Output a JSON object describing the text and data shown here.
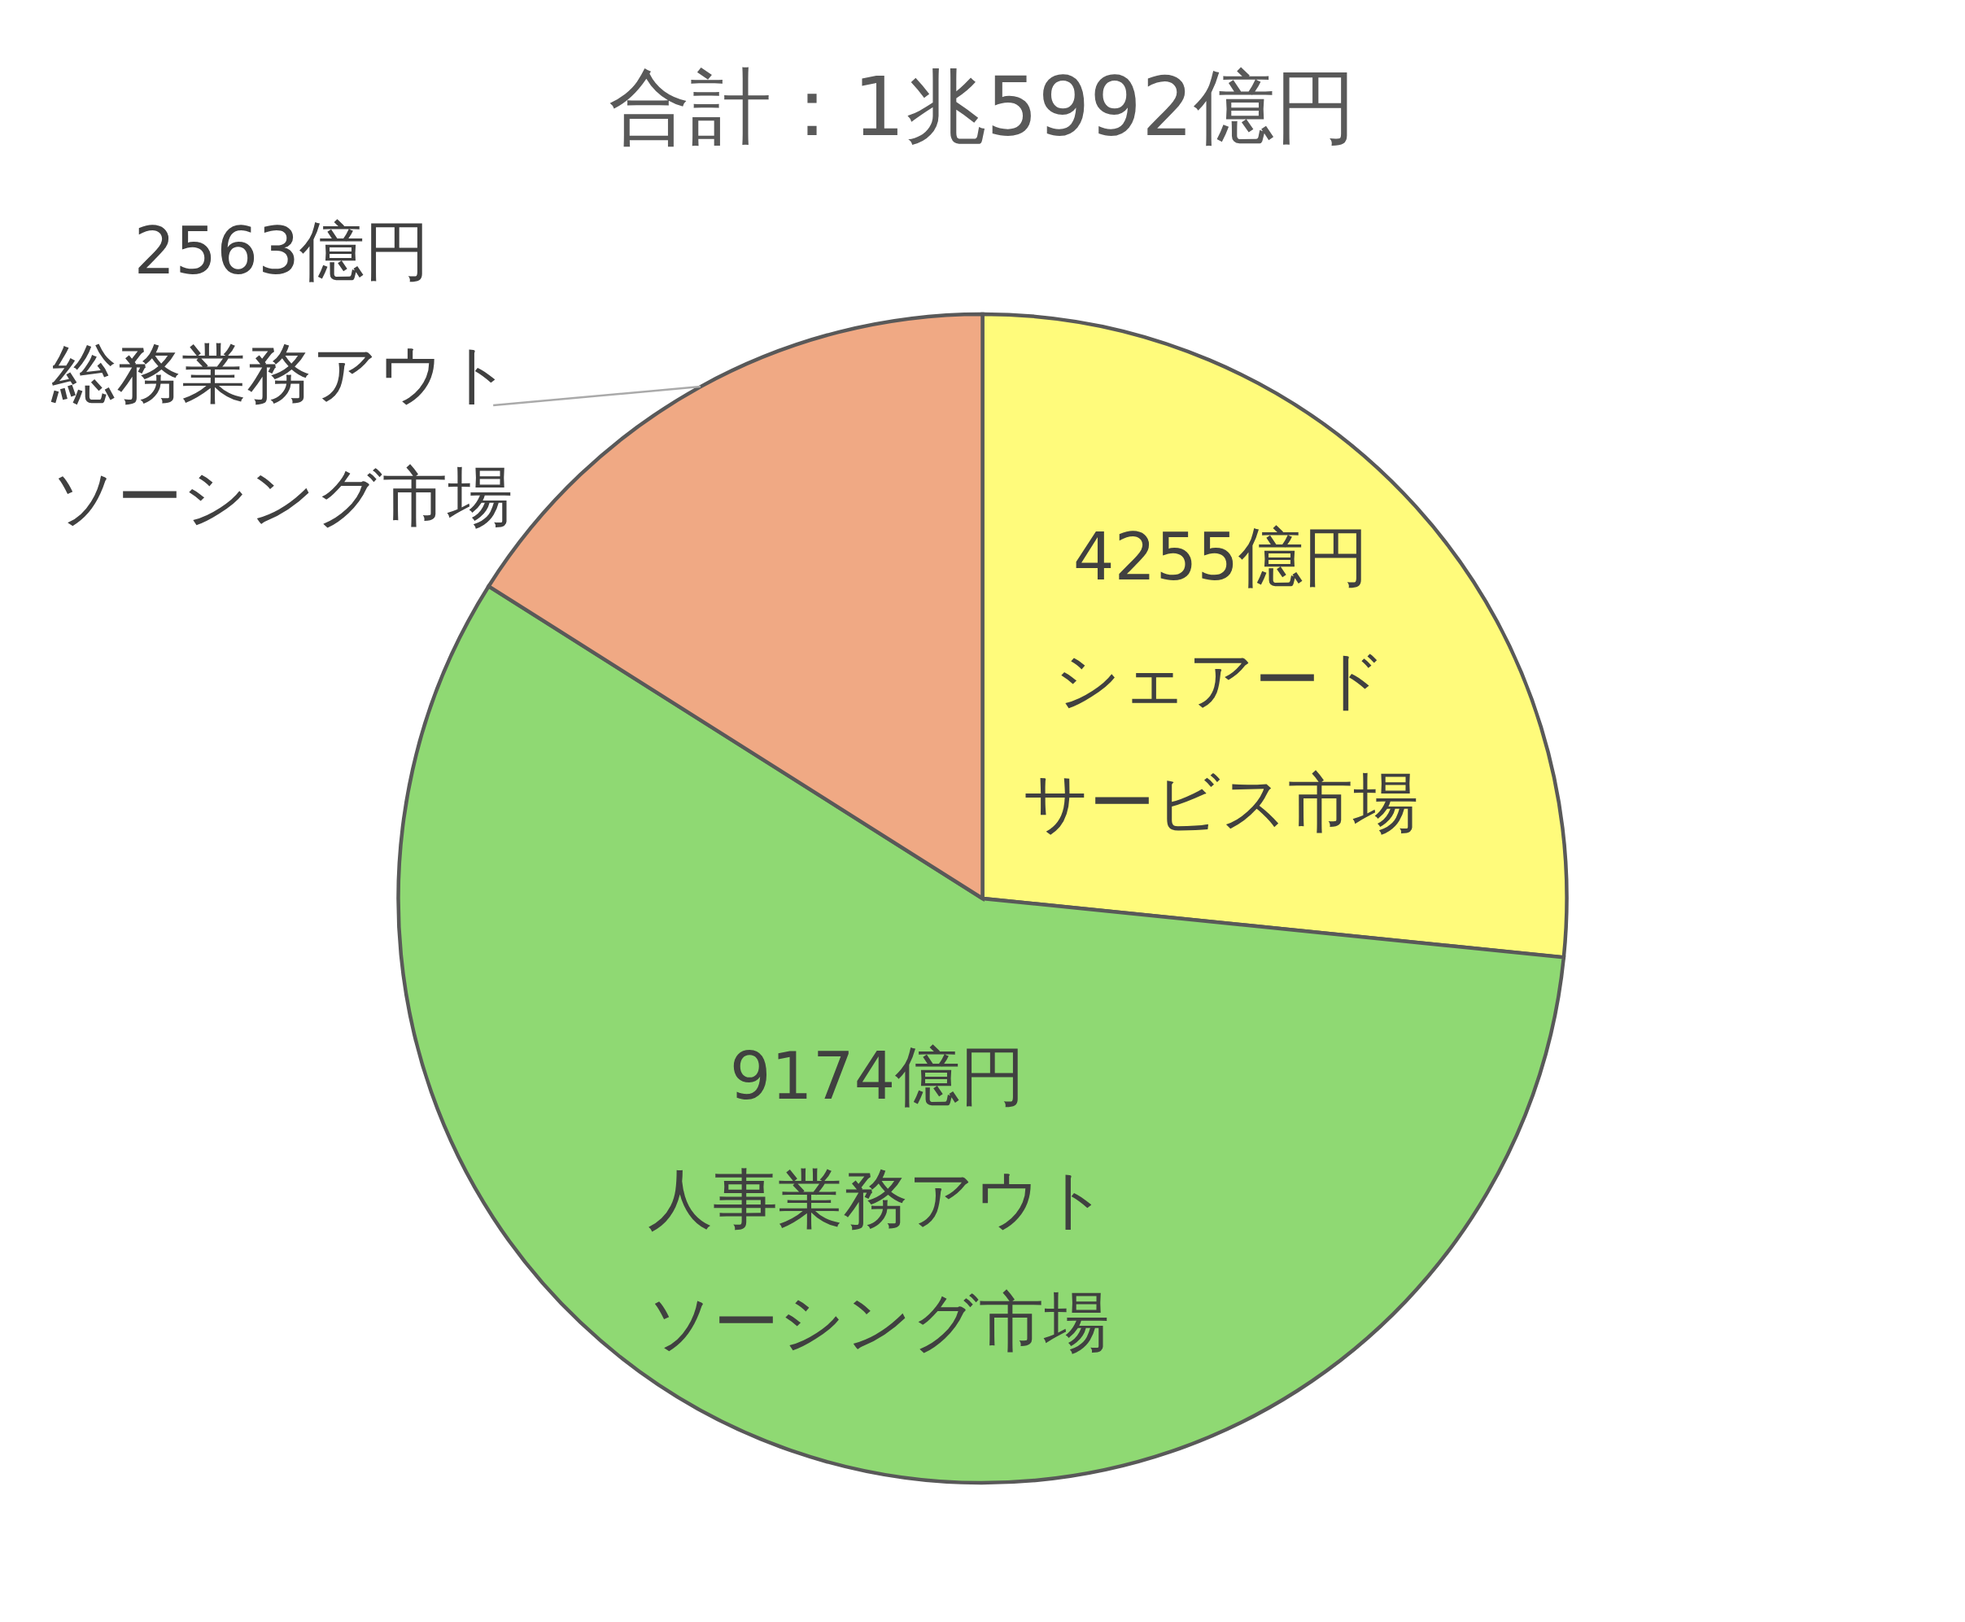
{
  "chart_data": {
    "type": "pie",
    "title": "合計：1兆5992億円",
    "categories": [
      "シェアードサービス市場",
      "人事業務アウトソーシング市場",
      "総務業務アウトソーシング市場"
    ],
    "values": [
      4255,
      9174,
      2563
    ],
    "value_labels": [
      "4255億円",
      "9174億円",
      "2563億円"
    ],
    "colors": [
      "#fffb7b",
      "#8fd973",
      "#f0a984"
    ]
  }
}
